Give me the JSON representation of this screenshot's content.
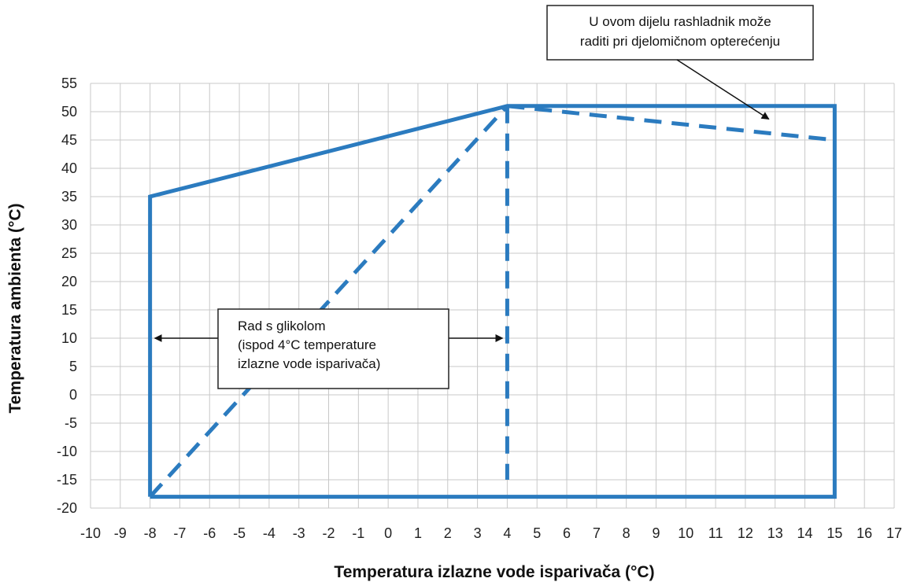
{
  "chart_data": {
    "type": "line",
    "xlabel": "Temperatura izlazne vode isparivača (°C)",
    "ylabel": "Temperatura ambienta (°C)",
    "xlim": [
      -10,
      17
    ],
    "ylim": [
      -20,
      55
    ],
    "x_ticks": [
      -10,
      -9,
      -8,
      -7,
      -6,
      -5,
      -4,
      -3,
      -2,
      -1,
      0,
      1,
      2,
      3,
      4,
      5,
      6,
      7,
      8,
      9,
      10,
      11,
      12,
      13,
      14,
      15,
      16,
      17
    ],
    "y_ticks": [
      55,
      50,
      45,
      40,
      35,
      30,
      25,
      20,
      15,
      10,
      5,
      0,
      -5,
      -10,
      -15,
      -20
    ],
    "grid": true,
    "color": "#2b7bbf",
    "series": [
      {
        "style": "solid",
        "points": [
          [
            -8,
            -18
          ],
          [
            -8,
            35
          ],
          [
            4,
            51
          ],
          [
            15,
            51
          ],
          [
            15,
            -18
          ],
          [
            -8,
            -18
          ]
        ]
      },
      {
        "style": "dashed",
        "points": [
          [
            -8,
            -18
          ],
          [
            4,
            51
          ]
        ]
      },
      {
        "style": "dashed",
        "points": [
          [
            4,
            51
          ],
          [
            4,
            -15
          ]
        ]
      },
      {
        "style": "dashed",
        "points": [
          [
            4,
            51
          ],
          [
            15,
            45
          ]
        ]
      }
    ],
    "annotations": [
      {
        "lines": [
          "U ovom dijelu rashladnik može",
          "raditi pri djelomičnom opterećenju"
        ],
        "arrow_to": [
          13,
          48
        ]
      },
      {
        "lines": [
          "Rad s glikolom",
          "(ispod 4°C temperature",
          "izlazne vode isparivača)"
        ],
        "arrows_to": [
          [
            -8,
            10
          ],
          [
            4,
            10
          ]
        ]
      }
    ]
  }
}
